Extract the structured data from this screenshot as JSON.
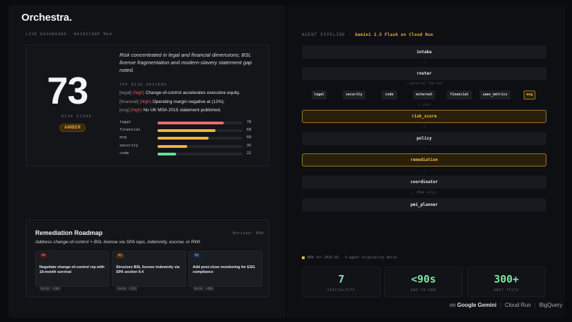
{
  "brand": "Orchestra.",
  "dashboard": {
    "live": "LIVE DASHBOARD",
    "company": "HASHICORP M&A"
  },
  "risk": {
    "score": "73",
    "score_label": "RISK SCORE",
    "band": "AMBER",
    "summary": "Risk concentrated in legal and financial dimensions; BSL license fragmentation and modern-slavery statement gap noted.",
    "drivers_heading": "TOP RISK DRIVERS",
    "drivers": [
      {
        "category": "[legal]",
        "severity": "(high)",
        "text": "Change-of-control accelerates executive equity."
      },
      {
        "category": "[financial]",
        "severity": "(high)",
        "text": "Operating margin negative at (12%)."
      },
      {
        "category": "[esg]",
        "severity": "(high)",
        "text": "No UK MSA 2015 statement published."
      }
    ],
    "dimensions": [
      {
        "name": "legal",
        "value": 78,
        "color": "#ef6b6b"
      },
      {
        "name": "financial",
        "value": 68,
        "color": "#f3b33d"
      },
      {
        "name": "esg",
        "value": 60,
        "color": "#f3b33d"
      },
      {
        "name": "security",
        "value": 35,
        "color": "#f3b33d"
      },
      {
        "name": "code",
        "value": 22,
        "color": "#6fdc94"
      }
    ]
  },
  "roadmap": {
    "title": "Remediation Roadmap",
    "horizon": "Horizon: 60d",
    "subtitle": "Address change-of-control + BSL license via SPA reps, indemnity, escrow, or RWI.",
    "tasks": [
      {
        "priority": "P0",
        "title": "Negotiate change-of-control rep with 18-month survival",
        "chips": [
          "Sarah",
          "~10d"
        ],
        "color": "#ef6b6b",
        "bg": "#3a1717"
      },
      {
        "priority": "P1",
        "title": "Structure BSL license indemnity via SPA section 9.4",
        "chips": [
          "Sarah",
          "~15d"
        ],
        "color": "#f3b33d",
        "bg": "#3a2a0d"
      },
      {
        "priority": "P2",
        "title": "Add post-close monitoring for ESG compliance",
        "chips": [
          "Sarah",
          "~30d"
        ],
        "color": "#7fb2ee",
        "bg": "#16253a"
      }
    ]
  },
  "pipeline": {
    "label": "AGENT PIPELINE",
    "model": "Gemini 2.5 Flash on Cloud Run",
    "nodes": {
      "intake": "intake",
      "router": "router",
      "risk_score": "risk_score",
      "policy": "policy",
      "remediation": "remediation",
      "coordinator": "coordinator",
      "pmi_planner": "pmi_planner"
    },
    "fanout_label": "↓ parallel fan-out",
    "join_label": "↓ join",
    "ma_only_label": "↓ (M&A only)",
    "arrow": "↓",
    "specialists": [
      {
        "name": "legal"
      },
      {
        "name": "security"
      },
      {
        "name": "code"
      },
      {
        "name": "external"
      },
      {
        "name": "financial"
      },
      {
        "name": "saas_metrics"
      },
      {
        "name": "esg"
      }
    ]
  },
  "stats": {
    "note": "NEW for 2026-05 · 3-agent originality delta",
    "items": [
      {
        "value": "7",
        "label": "SPECIALISTS"
      },
      {
        "value": "<90s",
        "label": "END-TO-END"
      },
      {
        "value": "300+",
        "label": "UNIT TESTS"
      }
    ]
  },
  "footer": {
    "prefix": "on",
    "google": "Google Gemini",
    "cloud_run": "Cloud Run",
    "bigquery": "BigQuery"
  }
}
